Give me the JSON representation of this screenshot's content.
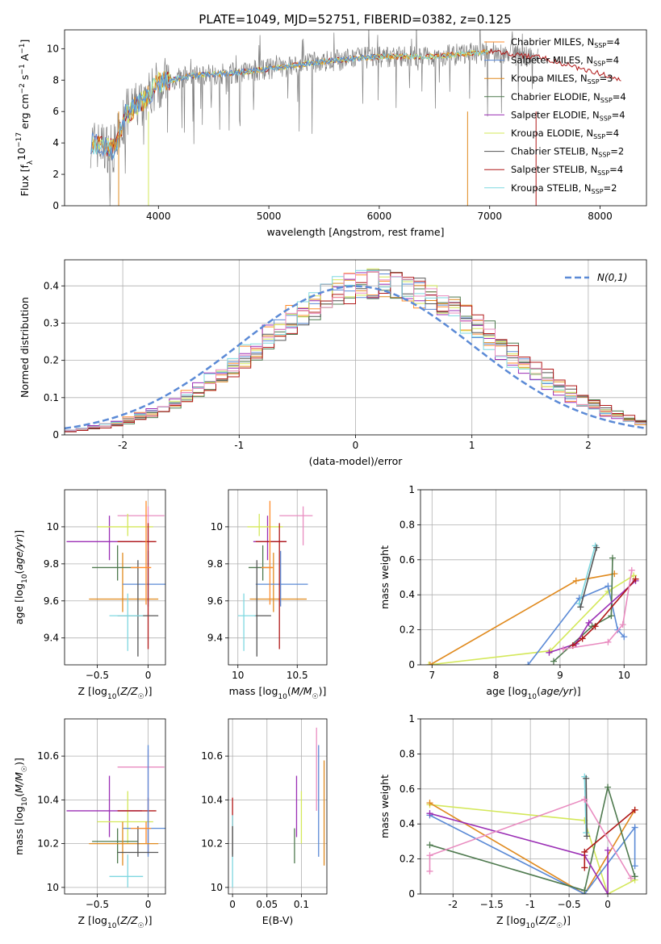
{
  "figure_title": "PLATE=1049, MJD=52751, FIBERID=0382, z=0.125",
  "colors": {
    "Chabrier MILES": "#ff8c2a",
    "Salpeter MILES": "#5b8ad6",
    "Kroupa MILES": "#e08a1e",
    "Chabrier ELODIE": "#4f7a4f",
    "Salpeter ELODIE": "#9b2fb5",
    "Kroupa ELODIE": "#d4e85a",
    "Chabrier STELIB": "#555555",
    "Salpeter STELIB": "#b01818",
    "Kroupa STELIB": "#7fd8e0",
    "pink": "#e98cc0",
    "data": "#808080",
    "normal": "#5b8ad6"
  },
  "chart_data": [
    {
      "id": "spectrum",
      "type": "line",
      "title": "PLATE=1049, MJD=52751, FIBERID=0382, z=0.125",
      "xlabel": "wavelength [Angstrom, rest frame]",
      "ylabel": "Flux [f_λ 10^-17 erg cm^-2 s^-1 A^-1]",
      "xlim": [
        3150,
        8420
      ],
      "ylim": [
        0,
        11.2
      ],
      "xticks": [
        4000,
        5000,
        6000,
        7000,
        8000
      ],
      "yticks": [
        0,
        2,
        4,
        6,
        8,
        10
      ],
      "legend": "top-right",
      "series": [
        {
          "name": "Chabrier MILES, N_SSP=4"
        },
        {
          "name": "Salpeter MILES, N_SSP=4"
        },
        {
          "name": "Kroupa MILES, N_SSP=3"
        },
        {
          "name": "Chabrier ELODIE, N_SSP=4"
        },
        {
          "name": "Salpeter ELODIE, N_SSP=4"
        },
        {
          "name": "Kroupa ELODIE, N_SSP=4"
        },
        {
          "name": "Chabrier STELIB, N_SSP=2"
        },
        {
          "name": "Salpeter STELIB, N_SSP=4"
        },
        {
          "name": "Kroupa STELIB, N_SSP=2"
        }
      ],
      "continuum": {
        "x": [
          3380,
          3600,
          3700,
          3850,
          4000,
          4300,
          4600,
          5000,
          5500,
          6000,
          6500,
          7000,
          7500,
          8000,
          8200
        ],
        "y": [
          4.0,
          3.6,
          5.8,
          6.6,
          7.8,
          8.3,
          8.4,
          8.7,
          9.2,
          9.5,
          9.5,
          9.8,
          9.4,
          8.4,
          7.9
        ]
      }
    },
    {
      "id": "residuals",
      "type": "area",
      "xlabel": "(data-model)/error",
      "ylabel": "Normed distribution",
      "xlim": [
        -2.5,
        2.5
      ],
      "ylim": [
        0,
        0.47
      ],
      "xticks": [
        -2,
        -1,
        0,
        1,
        2
      ],
      "yticks": [
        0.0,
        0.1,
        0.2,
        0.3,
        0.4
      ],
      "legend": "top-right",
      "legend_label": "N(0,1)",
      "bin_width": 0.1,
      "grid": true
    },
    {
      "id": "age_vs_Z",
      "type": "scatter",
      "xlabel": "Z [log10(Z/Z☉)]",
      "ylabel": "age [log10(age/yr)]",
      "xlim": [
        -0.82,
        0.17
      ],
      "ylim": [
        9.255,
        10.2
      ],
      "xticks": [
        -0.5,
        0.0
      ],
      "yticks": [
        9.4,
        9.6,
        9.8,
        10.0
      ],
      "points": [
        {
          "c": "Salpeter ELODIE",
          "x": -0.38,
          "y": 9.92,
          "xerr": [
            0.42,
            0.32
          ],
          "yerr": [
            0.1,
            0.14
          ]
        },
        {
          "c": "pink",
          "x": 0.0,
          "y": 10.06,
          "xerr": [
            0.3,
            0.16
          ],
          "yerr": [
            0.16,
            0.05
          ]
        },
        {
          "c": "Kroupa ELODIE",
          "x": -0.2,
          "y": 10.0,
          "xerr": [
            0.3,
            0.25
          ],
          "yerr": [
            0.05,
            0.07
          ]
        },
        {
          "c": "Kroupa MILES",
          "x": -0.25,
          "y": 9.61,
          "xerr": [
            0.33,
            0.35
          ],
          "yerr": [
            0.07,
            0.25
          ]
        },
        {
          "c": "Salpeter MILES",
          "x": 0.0,
          "y": 9.69,
          "xerr": [
            0.25,
            0.18
          ],
          "yerr": [
            0.12,
            0.18
          ]
        },
        {
          "c": "Chabrier ELODIE",
          "x": -0.3,
          "y": 9.78,
          "xerr": [
            0.25,
            0.2
          ],
          "yerr": [
            0.07,
            0.12
          ]
        },
        {
          "c": "Salpeter STELIB",
          "x": 0.0,
          "y": 9.92,
          "xerr": [
            0.3,
            0.08
          ],
          "yerr": [
            0.58,
            0.1
          ]
        },
        {
          "c": "Chabrier STELIB",
          "x": -0.1,
          "y": 9.52,
          "xerr": [
            0.2,
            0.2
          ],
          "yerr": [
            0.22,
            0.3
          ]
        },
        {
          "c": "Kroupa STELIB",
          "x": -0.2,
          "y": 9.52,
          "xerr": [
            0.18,
            0.15
          ],
          "yerr": [
            0.19,
            0.12
          ]
        },
        {
          "c": "Chabrier MILES",
          "x": -0.02,
          "y": 9.78,
          "xerr": [
            0.15,
            0.05
          ],
          "yerr": [
            0.2,
            0.36
          ]
        }
      ]
    },
    {
      "id": "age_vs_mass",
      "type": "scatter",
      "xlabel": "mass [log10(M/M☉)]",
      "ylabel": "",
      "xlim": [
        9.92,
        10.75
      ],
      "ylim": [
        9.255,
        10.2
      ],
      "xticks": [
        10.0,
        10.5
      ],
      "yticks": [
        9.4,
        9.6,
        9.8,
        10.0
      ],
      "points": [
        {
          "c": "Salpeter ELODIE",
          "x": 10.25,
          "y": 9.92,
          "xerr": [
            0.12,
            0.16
          ],
          "yerr": [
            0.1,
            0.14
          ]
        },
        {
          "c": "pink",
          "x": 10.55,
          "y": 10.06,
          "xerr": [
            0.2,
            0.08
          ],
          "yerr": [
            0.16,
            0.05
          ]
        },
        {
          "c": "Kroupa ELODIE",
          "x": 10.18,
          "y": 10.0,
          "xerr": [
            0.1,
            0.2
          ],
          "yerr": [
            0.05,
            0.07
          ]
        },
        {
          "c": "Kroupa MILES",
          "x": 10.3,
          "y": 9.61,
          "xerr": [
            0.2,
            0.28
          ],
          "yerr": [
            0.07,
            0.25
          ]
        },
        {
          "c": "Salpeter MILES",
          "x": 10.36,
          "y": 9.69,
          "xerr": [
            0.21,
            0.23
          ],
          "yerr": [
            0.12,
            0.18
          ]
        },
        {
          "c": "Chabrier ELODIE",
          "x": 10.21,
          "y": 9.78,
          "xerr": [
            0.12,
            0.08
          ],
          "yerr": [
            0.07,
            0.12
          ]
        },
        {
          "c": "Salpeter STELIB",
          "x": 10.35,
          "y": 9.92,
          "xerr": [
            0.2,
            0.06
          ],
          "yerr": [
            0.58,
            0.1
          ]
        },
        {
          "c": "Chabrier STELIB",
          "x": 10.16,
          "y": 9.52,
          "xerr": [
            0.02,
            0.12
          ],
          "yerr": [
            0.22,
            0.3
          ]
        },
        {
          "c": "Kroupa STELIB",
          "x": 10.05,
          "y": 9.52,
          "xerr": [
            0.05,
            0.1
          ],
          "yerr": [
            0.19,
            0.12
          ]
        },
        {
          "c": "Chabrier MILES",
          "x": 10.27,
          "y": 9.78,
          "xerr": [
            0.07,
            0.03
          ],
          "yerr": [
            0.2,
            0.36
          ]
        }
      ]
    },
    {
      "id": "weight_vs_age",
      "type": "line",
      "xlabel": "age [log10(age/yr)]",
      "ylabel": "mass weight",
      "xlim": [
        6.82,
        10.35
      ],
      "ylim": [
        0,
        1.0
      ],
      "xticks": [
        7,
        8,
        9,
        10
      ],
      "yticks": [
        0.0,
        0.2,
        0.4,
        0.6,
        0.8,
        1.0
      ],
      "grid": true,
      "series": [
        {
          "c": "Kroupa ELODIE",
          "x": [
            6.95,
            8.85,
            9.75,
            10.15
          ],
          "y": [
            0.0,
            0.08,
            0.42,
            0.51
          ]
        },
        {
          "c": "Kroupa MILES",
          "x": [
            6.97,
            9.25,
            9.85
          ],
          "y": [
            0.0,
            0.48,
            0.52
          ]
        },
        {
          "c": "Salpeter MILES",
          "x": [
            8.5,
            9.3,
            9.75,
            9.9,
            10.0
          ],
          "y": [
            0.0,
            0.38,
            0.45,
            0.2,
            0.16
          ]
        },
        {
          "c": "Kroupa STELIB",
          "x": [
            9.3,
            9.55
          ],
          "y": [
            0.35,
            0.68
          ]
        },
        {
          "c": "Chabrier STELIB",
          "x": [
            9.32,
            9.57
          ],
          "y": [
            0.33,
            0.67
          ]
        },
        {
          "c": "Chabrier ELODIE",
          "x": [
            8.9,
            9.5,
            9.8,
            9.82
          ],
          "y": [
            0.02,
            0.22,
            0.28,
            0.61
          ]
        },
        {
          "c": "Salpeter ELODIE",
          "x": [
            8.83,
            9.25,
            9.45,
            10.18
          ],
          "y": [
            0.07,
            0.12,
            0.24,
            0.48
          ]
        },
        {
          "c": "Salpeter STELIB",
          "x": [
            9.2,
            9.35,
            9.55,
            10.18
          ],
          "y": [
            0.11,
            0.15,
            0.22,
            0.49
          ]
        },
        {
          "c": "pink",
          "x": [
            9.05,
            9.75,
            9.98,
            10.12
          ],
          "y": [
            0.09,
            0.13,
            0.23,
            0.54
          ]
        }
      ]
    },
    {
      "id": "mass_vs_Z",
      "type": "scatter",
      "xlabel": "Z [log10(Z/Z☉)]",
      "ylabel": "mass [log10(M/M☉)]",
      "xlim": [
        -0.82,
        0.17
      ],
      "ylim": [
        9.97,
        10.77
      ],
      "xticks": [
        -0.5,
        0.0
      ],
      "yticks": [
        10.0,
        10.2,
        10.4,
        10.6
      ],
      "points": [
        {
          "c": "pink",
          "x": 0.0,
          "y": 10.55,
          "xerr": [
            0.3,
            0.16
          ],
          "yerr": [
            0.2,
            0.08
          ]
        },
        {
          "c": "Salpeter ELODIE",
          "x": -0.38,
          "y": 10.35,
          "xerr": [
            0.42,
            0.32
          ],
          "yerr": [
            0.12,
            0.16
          ]
        },
        {
          "c": "Kroupa ELODIE",
          "x": -0.2,
          "y": 10.3,
          "xerr": [
            0.3,
            0.25
          ],
          "yerr": [
            0.1,
            0.14
          ]
        },
        {
          "c": "Salpeter STELIB",
          "x": 0.0,
          "y": 10.35,
          "xerr": [
            0.3,
            0.08
          ],
          "yerr": [
            0.2,
            0.06
          ]
        },
        {
          "c": "Salpeter MILES",
          "x": 0.0,
          "y": 10.27,
          "xerr": [
            0.25,
            0.18
          ],
          "yerr": [
            0.13,
            0.38
          ]
        },
        {
          "c": "Chabrier ELODIE",
          "x": -0.3,
          "y": 10.21,
          "xerr": [
            0.25,
            0.2
          ],
          "yerr": [
            0.1,
            0.06
          ]
        },
        {
          "c": "Kroupa MILES",
          "x": -0.25,
          "y": 10.2,
          "xerr": [
            0.33,
            0.35
          ],
          "yerr": [
            0.1,
            0.1
          ]
        },
        {
          "c": "Chabrier STELIB",
          "x": -0.1,
          "y": 10.16,
          "xerr": [
            0.2,
            0.2
          ],
          "yerr": [
            0.02,
            0.12
          ]
        },
        {
          "c": "Kroupa STELIB",
          "x": -0.2,
          "y": 10.05,
          "xerr": [
            0.18,
            0.15
          ],
          "yerr": [
            0.05,
            0.1
          ]
        },
        {
          "c": "Chabrier MILES",
          "x": -0.02,
          "y": 10.27,
          "xerr": [
            0.15,
            0.05
          ],
          "yerr": [
            0.07,
            0.03
          ]
        }
      ]
    },
    {
      "id": "mass_vs_ebv",
      "type": "scatter",
      "xlabel": "E(B-V)",
      "ylabel": "",
      "xlim": [
        -0.006,
        0.137
      ],
      "ylim": [
        9.97,
        10.77
      ],
      "xticks": [
        0.0,
        0.05,
        0.1
      ],
      "yticks": [
        10.0,
        10.2,
        10.4,
        10.6
      ],
      "points": [
        {
          "c": "Salpeter STELIB",
          "x": 0.0,
          "y": 10.35,
          "yerr": [
            0.2,
            0.06
          ]
        },
        {
          "c": "Kroupa STELIB",
          "x": 0.0,
          "y": 10.05,
          "yerr": [
            0.05,
            0.28
          ]
        },
        {
          "c": "Chabrier STELIB",
          "x": 0.0,
          "y": 10.16,
          "yerr": [
            0.02,
            0.12
          ]
        },
        {
          "c": "Chabrier ELODIE",
          "x": 0.09,
          "y": 10.21,
          "yerr": [
            0.1,
            0.06
          ]
        },
        {
          "c": "Salpeter ELODIE",
          "x": 0.093,
          "y": 10.35,
          "yerr": [
            0.12,
            0.16
          ]
        },
        {
          "c": "Kroupa ELODIE",
          "x": 0.1,
          "y": 10.3,
          "yerr": [
            0.1,
            0.14
          ]
        },
        {
          "c": "pink",
          "x": 0.122,
          "y": 10.55,
          "yerr": [
            0.2,
            0.18
          ]
        },
        {
          "c": "Salpeter MILES",
          "x": 0.125,
          "y": 10.27,
          "yerr": [
            0.13,
            0.38
          ]
        },
        {
          "c": "Kroupa MILES",
          "x": 0.133,
          "y": 10.2,
          "yerr": [
            0.1,
            0.38
          ]
        }
      ]
    },
    {
      "id": "weight_vs_Z",
      "type": "line",
      "xlabel": "Z [log10(Z/Z☉)]",
      "ylabel": "mass weight",
      "xlim": [
        -2.42,
        0.5
      ],
      "ylim": [
        0,
        1.0
      ],
      "xticks": [
        -2.0,
        -1.5,
        -1.0,
        -0.5,
        0.0
      ],
      "yticks": [
        0.0,
        0.2,
        0.4,
        0.6,
        0.8,
        1.0
      ],
      "grid": true,
      "series": [
        {
          "c": "Kroupa ELODIE",
          "x": [
            -2.3,
            -0.3,
            0.0,
            0.35
          ],
          "y": [
            0.51,
            0.42,
            0.0,
            0.08
          ]
        },
        {
          "c": "Kroupa MILES",
          "x": [
            -2.3,
            -0.3,
            0.35
          ],
          "y": [
            0.52,
            0.0,
            0.48
          ]
        },
        {
          "c": "Salpeter MILES",
          "x": [
            -2.3,
            -0.3,
            0.35,
            0.35
          ],
          "y": [
            0.45,
            0.0,
            0.38,
            0.16
          ]
        },
        {
          "c": "Kroupa STELIB",
          "x": [
            -0.3,
            -0.28
          ],
          "y": [
            0.67,
            0.35
          ]
        },
        {
          "c": "Chabrier STELIB",
          "x": [
            -0.28,
            -0.27
          ],
          "y": [
            0.66,
            0.33
          ]
        },
        {
          "c": "Chabrier ELODIE",
          "x": [
            -2.3,
            -0.3,
            0.0,
            0.35
          ],
          "y": [
            0.28,
            0.02,
            0.61,
            0.1
          ]
        },
        {
          "c": "Salpeter ELODIE",
          "x": [
            -2.3,
            -0.3,
            0.0,
            0.0
          ],
          "y": [
            0.46,
            0.22,
            0.0,
            0.25
          ]
        },
        {
          "c": "Salpeter STELIB",
          "x": [
            -0.3,
            -0.3,
            0.35
          ],
          "y": [
            0.15,
            0.24,
            0.48
          ]
        },
        {
          "c": "pink",
          "x": [
            -2.3,
            -2.3,
            -0.3,
            0.3
          ],
          "y": [
            0.13,
            0.22,
            0.54,
            0.09
          ]
        }
      ]
    }
  ]
}
